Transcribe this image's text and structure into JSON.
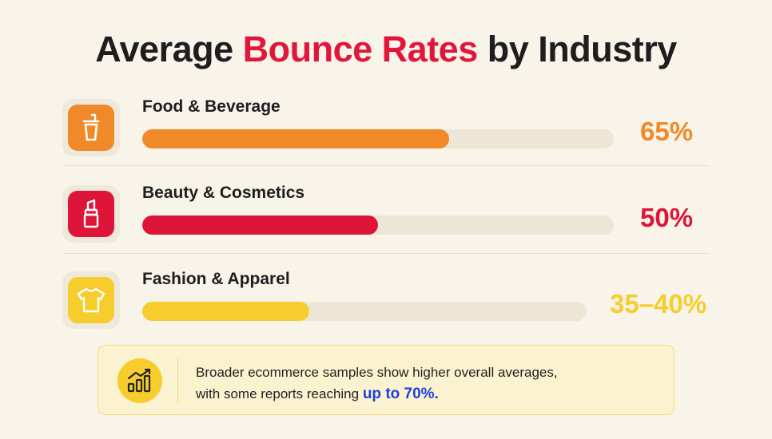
{
  "title": {
    "prefix": "Average",
    "highlight": "Bounce Rates",
    "suffix": "by Industry"
  },
  "colors": {
    "food": "#f08a28",
    "beauty": "#de1538",
    "fashion": "#f6cd2c",
    "highlight_text": "#1c3fe0"
  },
  "chart_data": {
    "type": "bar",
    "orientation": "horizontal",
    "categories": [
      "Food & Beverage",
      "Beauty & Cosmetics",
      "Fashion & Apparel"
    ],
    "values": [
      65,
      50,
      37.5
    ],
    "value_labels": [
      "65%",
      "50%",
      "35–40%"
    ],
    "icons": [
      "drink-cup-icon",
      "lipstick-icon",
      "tshirt-icon"
    ],
    "title": "Average Bounce Rates by Industry",
    "xlim": [
      0,
      100
    ]
  },
  "note": {
    "line1": "Broader ecommerce samples show higher overall averages,",
    "line2_prefix": "with some reports reaching",
    "highlight": "up to 70%.",
    "icon": "growth-chart-icon"
  }
}
